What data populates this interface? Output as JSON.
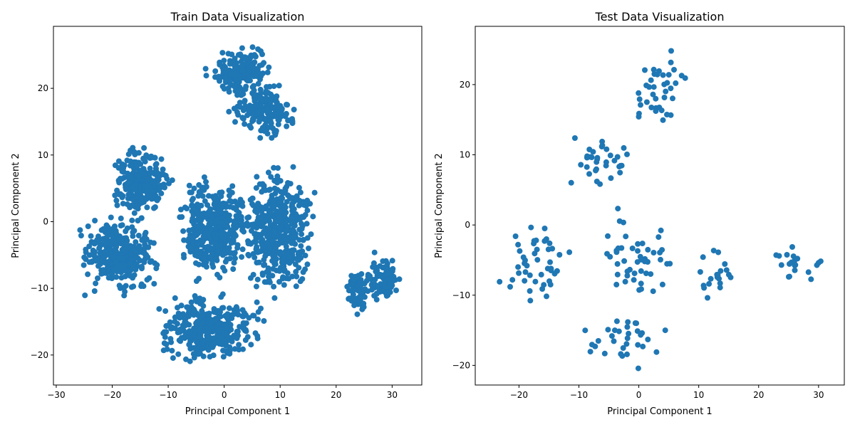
{
  "chart_data": [
    {
      "type": "scatter",
      "title": "Train Data Visualization",
      "xlabel": "Principal Component 1",
      "ylabel": "Principal Component 2",
      "xlim": [
        -30.5,
        35.3
      ],
      "ylim": [
        -24.5,
        29.3
      ],
      "xticks": [
        -30,
        -20,
        -10,
        0,
        10,
        20,
        30
      ],
      "yticks": [
        -20,
        -10,
        0,
        10,
        20
      ],
      "grid": false,
      "marker_color": "#1f77b4",
      "clusters": [
        {
          "label": "upper-cluster",
          "x": [
            -4,
            10
          ],
          "y": [
            18,
            27
          ]
        },
        {
          "label": "upper-right-cluster",
          "x": [
            0,
            14
          ],
          "y": [
            12,
            22
          ]
        },
        {
          "label": "center-cluster",
          "x": [
            -10,
            6
          ],
          "y": [
            -10,
            8
          ]
        },
        {
          "label": "left-cluster",
          "x": [
            -27,
            -10
          ],
          "y": [
            -12,
            2
          ]
        },
        {
          "label": "lower-cluster",
          "x": [
            -14,
            8
          ],
          "y": [
            -22,
            -10
          ]
        },
        {
          "label": "mid-left-cluster",
          "x": [
            -22,
            -8
          ],
          "y": [
            0,
            12
          ]
        },
        {
          "label": "right-cluster",
          "x": [
            2,
            17
          ],
          "y": [
            -12,
            10
          ]
        },
        {
          "label": "far-right-cluster-a",
          "x": [
            21,
            27
          ],
          "y": [
            -15,
            -6
          ]
        },
        {
          "label": "far-right-cluster-b",
          "x": [
            25,
            32
          ],
          "y": [
            -13,
            -4
          ]
        }
      ]
    },
    {
      "type": "scatter",
      "title": "Test Data Visualization",
      "xlabel": "Principal Component 1",
      "ylabel": "Principal Component 2",
      "xlim": [
        -27.3,
        34.3
      ],
      "ylim": [
        -22.8,
        28.3
      ],
      "xticks": [
        -20,
        -10,
        0,
        10,
        20,
        30
      ],
      "yticks": [
        -20,
        -10,
        0,
        10,
        20
      ],
      "grid": false,
      "marker_color": "#1f77b4",
      "clusters": [
        {
          "label": "upper-cluster",
          "x": [
            -3,
            10
          ],
          "y": [
            11,
            26
          ]
        },
        {
          "label": "mid-cluster",
          "x": [
            -14,
            0
          ],
          "y": [
            3,
            15
          ]
        },
        {
          "label": "center-cluster",
          "x": [
            -8,
            8
          ],
          "y": [
            -12,
            3
          ]
        },
        {
          "label": "left-cluster",
          "x": [
            -25,
            -10
          ],
          "y": [
            -13,
            2
          ]
        },
        {
          "label": "lower-cluster",
          "x": [
            -12,
            6
          ],
          "y": [
            -21,
            -12
          ]
        },
        {
          "label": "right-cluster",
          "x": [
            8,
            18
          ],
          "y": [
            -12,
            -2
          ]
        },
        {
          "label": "far-right-cluster",
          "x": [
            20,
            32
          ],
          "y": [
            -9,
            -2
          ]
        }
      ]
    }
  ]
}
